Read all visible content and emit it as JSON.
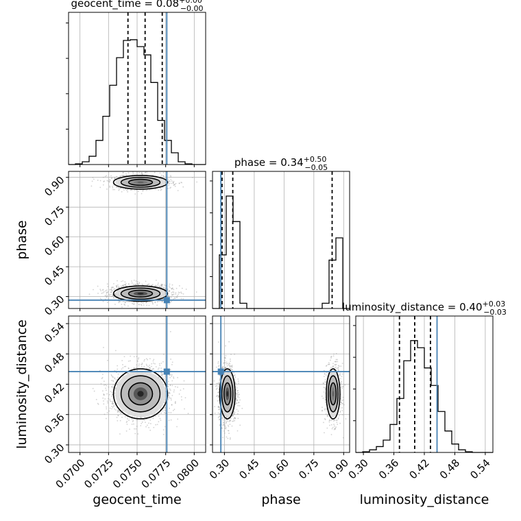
{
  "chart_data": {
    "type": "corner",
    "parameters": [
      "geocent_time",
      "phase",
      "luminosity_distance"
    ],
    "axis_labels": {
      "x": [
        "geocent_time",
        "phase",
        "luminosity_distance"
      ],
      "y": [
        "phase",
        "luminosity_distance"
      ]
    },
    "titles": [
      {
        "parameter": "geocent_time",
        "prefix": "geocent_time = 0.08",
        "plus": "+0.00",
        "minus": "−0.00"
      },
      {
        "parameter": "phase",
        "prefix": "phase = 0.34",
        "plus": "+0.50",
        "minus": "−0.05"
      },
      {
        "parameter": "luminosity_distance",
        "prefix": "luminosity_distance = 0.40",
        "plus": "+0.03",
        "minus": "−0.03"
      }
    ],
    "ranges": {
      "geocent_time": [
        0.069,
        0.081
      ],
      "phase": [
        0.24,
        0.93
      ],
      "luminosity_distance": [
        0.285,
        0.555
      ]
    },
    "ticks": {
      "geocent_time": {
        "values": [
          0.07,
          0.0725,
          0.075,
          0.0775,
          0.08
        ],
        "labels": [
          "0.0700",
          "0.0725",
          "0.0750",
          "0.0775",
          "0.0800"
        ]
      },
      "phase": {
        "values": [
          0.3,
          0.45,
          0.6,
          0.75,
          0.9
        ],
        "labels": [
          "0.30",
          "0.45",
          "0.60",
          "0.75",
          "0.90"
        ]
      },
      "luminosity_distance": {
        "values": [
          0.3,
          0.36,
          0.42,
          0.48,
          0.54
        ],
        "labels": [
          "0.30",
          "0.36",
          "0.42",
          "0.48",
          "0.54"
        ]
      }
    },
    "quantiles": {
      "geocent_time": [
        0.0742,
        0.0757,
        0.0772
      ],
      "phase": [
        0.288,
        0.342,
        0.842
      ],
      "luminosity_distance": [
        0.371,
        0.401,
        0.432
      ]
    },
    "truths": {
      "geocent_time": 0.0776,
      "phase": 0.282,
      "luminosity_distance": 0.445
    },
    "histograms": {
      "geocent_time": {
        "edges": [
          0.069,
          0.0696,
          0.0702,
          0.0708,
          0.0714,
          0.072,
          0.0726,
          0.0732,
          0.0738,
          0.0744,
          0.075,
          0.0756,
          0.0762,
          0.0768,
          0.0774,
          0.078,
          0.0786,
          0.0792,
          0.0798,
          0.0804,
          0.081
        ],
        "counts": [
          0,
          1,
          4,
          12,
          35,
          70,
          115,
          155,
          180,
          181,
          171,
          159,
          119,
          64,
          35,
          17,
          4,
          1,
          0,
          0
        ]
      },
      "phase": {
        "edges": [
          0.24,
          0.2745,
          0.309,
          0.3435,
          0.378,
          0.4125,
          0.447,
          0.4815,
          0.516,
          0.5505,
          0.585,
          0.6195,
          0.654,
          0.6885,
          0.723,
          0.7575,
          0.792,
          0.8265,
          0.861,
          0.8955,
          0.93
        ],
        "counts": [
          0,
          82,
          172,
          133,
          8,
          0,
          0,
          0,
          0,
          0,
          0,
          0,
          0,
          0,
          0,
          0,
          8,
          74,
          108,
          0
        ]
      },
      "luminosity_distance": {
        "edges": [
          0.285,
          0.2985,
          0.312,
          0.3255,
          0.339,
          0.3525,
          0.366,
          0.3795,
          0.393,
          0.4065,
          0.42,
          0.4335,
          0.447,
          0.4605,
          0.474,
          0.4875,
          0.501,
          0.5145,
          0.528,
          0.5415,
          0.555
        ],
        "counts": [
          0,
          1,
          4,
          9,
          19,
          43,
          83,
          141,
          172,
          161,
          130,
          103,
          63,
          33,
          13,
          4,
          1,
          0,
          0,
          0
        ]
      }
    },
    "pair_densities": [
      {
        "x": "geocent_time",
        "y": "phase",
        "modes": [
          {
            "cx": 0.0753,
            "cy": 0.315,
            "sx": 0.0011,
            "sy": 0.018,
            "level_scale": 1.0
          },
          {
            "cx": 0.0753,
            "cy": 0.875,
            "sx": 0.0011,
            "sy": 0.016,
            "level_scale": 0.55
          }
        ]
      },
      {
        "x": "geocent_time",
        "y": "luminosity_distance",
        "modes": [
          {
            "cx": 0.0753,
            "cy": 0.401,
            "sx": 0.0011,
            "sy": 0.023,
            "level_scale": 1.0
          }
        ]
      },
      {
        "x": "phase",
        "y": "luminosity_distance",
        "modes": [
          {
            "cx": 0.315,
            "cy": 0.401,
            "sx": 0.018,
            "sy": 0.023,
            "level_scale": 1.0
          },
          {
            "cx": 0.847,
            "cy": 0.401,
            "sx": 0.016,
            "sy": 0.023,
            "level_scale": 0.55
          }
        ]
      }
    ],
    "colors": {
      "truth": "#4682b4",
      "hist": "#000000",
      "grid": "#b0b0b0",
      "scatter": "#9a9a9a"
    }
  }
}
